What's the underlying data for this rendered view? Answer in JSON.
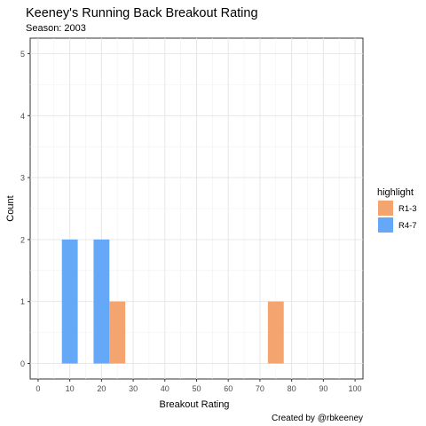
{
  "chart_data": {
    "type": "bar",
    "title": "Keeney's Running Back Breakout Rating",
    "subtitle": "Season: 2003",
    "xlabel": "Breakout Rating",
    "ylabel": "Count",
    "caption": "Created by @rbkeeney",
    "xlim": [
      -2.5,
      102.5
    ],
    "ylim": [
      -0.25,
      5.25
    ],
    "xticks": [
      0,
      10,
      20,
      30,
      40,
      50,
      60,
      70,
      80,
      90,
      100
    ],
    "yticks": [
      0,
      1,
      2,
      3,
      4,
      5
    ],
    "bin_width": 5,
    "grid": true,
    "legend": {
      "title": "highlight",
      "position": "right",
      "entries": [
        {
          "label": "R1-3",
          "color": "#F4A46E"
        },
        {
          "label": "R4-7",
          "color": "#64A8F7"
        }
      ]
    },
    "series": [
      {
        "name": "R1-3",
        "color": "#F4A46E",
        "bars": [
          {
            "x": 25,
            "count": 1
          },
          {
            "x": 75,
            "count": 1
          }
        ]
      },
      {
        "name": "R4-7",
        "color": "#64A8F7",
        "bars": [
          {
            "x": 10,
            "count": 2
          },
          {
            "x": 20,
            "count": 2
          }
        ]
      }
    ]
  }
}
